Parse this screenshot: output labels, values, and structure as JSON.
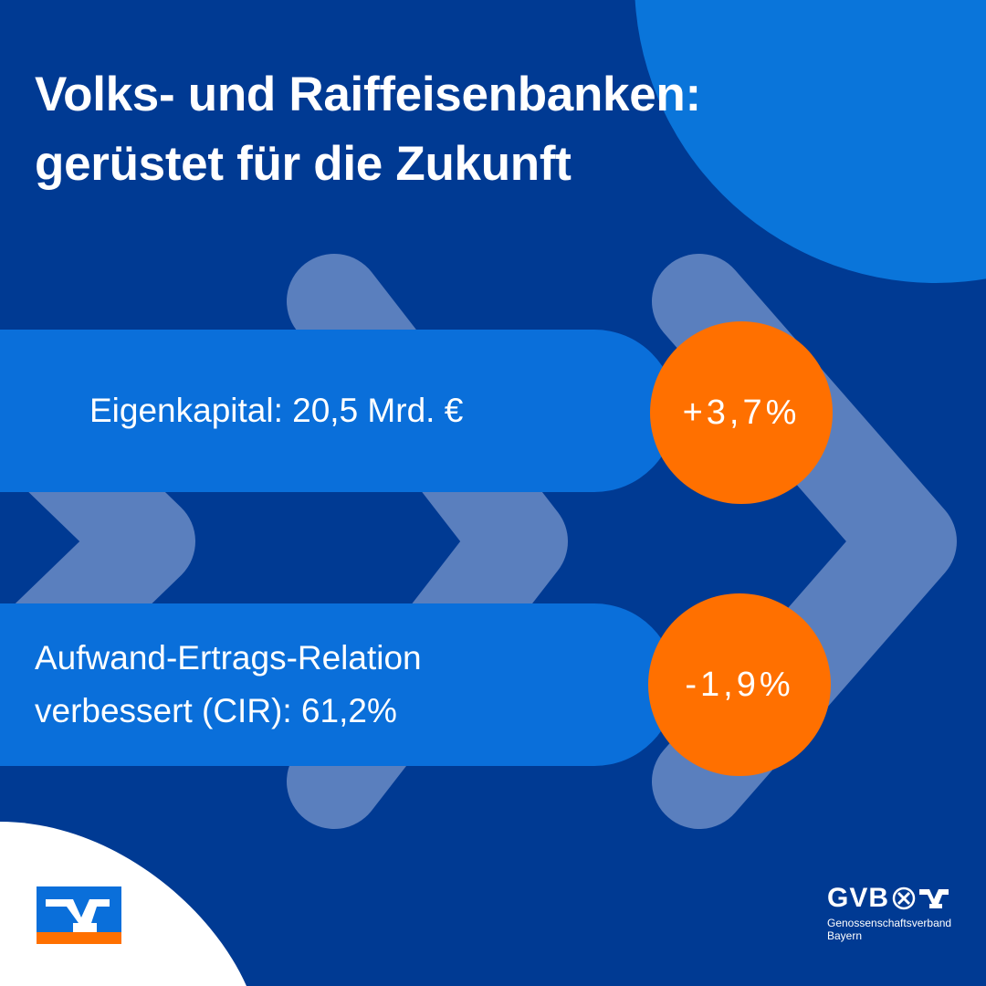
{
  "colors": {
    "background": "#003A93",
    "corner_circle": "#0A75DA",
    "chevron": "#5A7FBE",
    "pill": "#0A6FDA",
    "badge": "#FF7000",
    "text": "#FFFFFF"
  },
  "headline": {
    "line1": "Volks- und Raiffeisenbanken:",
    "line2": "gerüstet für die Zukunft"
  },
  "metrics": [
    {
      "label_lines": [
        "Eigenkapital: 20,5 Mrd. €"
      ],
      "change": "+3,7%"
    },
    {
      "label_lines": [
        "Aufwand-Ertrags-Relation",
        "verbessert (CIR): 61,2%"
      ],
      "change": "-1,9%"
    }
  ],
  "logos": {
    "left_icon": "volksbank-raiffeisenbank-logo-icon",
    "gvb": {
      "letters": "GVB",
      "icon": "raiffeisen-crossed-horseheads-icon",
      "name_line1": "Genossenschaftsverband",
      "name_line2": "Bayern"
    }
  }
}
